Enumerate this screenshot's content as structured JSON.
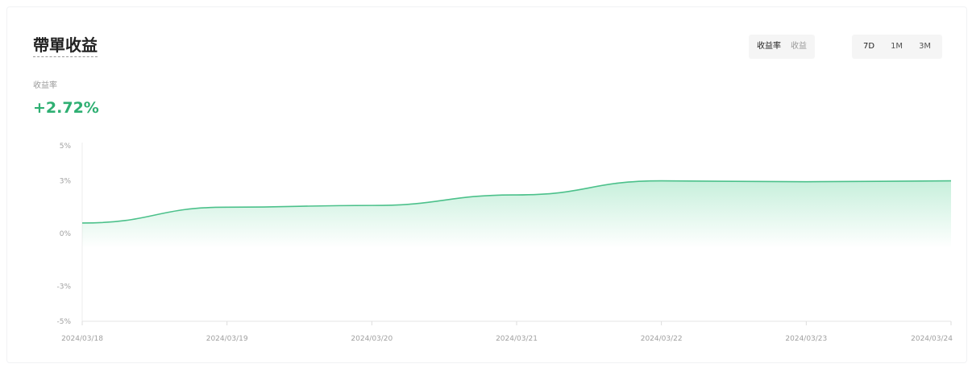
{
  "card": {
    "title": "帶單收益",
    "metric_toggle": [
      "收益率",
      "收益"
    ],
    "range_toggle": [
      "7D",
      "1M",
      "3M"
    ],
    "metric_label": "收益率",
    "metric_value": "+2.72%"
  },
  "colors": {
    "accent": "#2eaf72",
    "line": "#4cc18b",
    "area": "#5fd39a"
  },
  "chart_data": {
    "type": "area",
    "title": "",
    "xlabel": "",
    "ylabel": "",
    "x": [
      "2024/03/18",
      "2024/03/19",
      "2024/03/20",
      "2024/03/21",
      "2024/03/22",
      "2024/03/23",
      "2024/03/24"
    ],
    "x_tick_labels": [
      "2024/03/18",
      "2024/03/19",
      "2024/03/20",
      "2024/03/21",
      "2024/03/22",
      "2024/03/23",
      "2024/03/24"
    ],
    "series": [
      {
        "values": [
          0.6,
          1.5,
          1.6,
          2.2,
          3.0,
          2.95,
          3.0
        ]
      }
    ],
    "y_ticks": [
      5,
      3,
      0,
      -3,
      -5
    ],
    "y_tick_labels": [
      "5%",
      "3%",
      "0%",
      "-3%",
      "-5%"
    ],
    "ylim": [
      -5,
      5
    ],
    "grid": false,
    "legend": "none"
  }
}
